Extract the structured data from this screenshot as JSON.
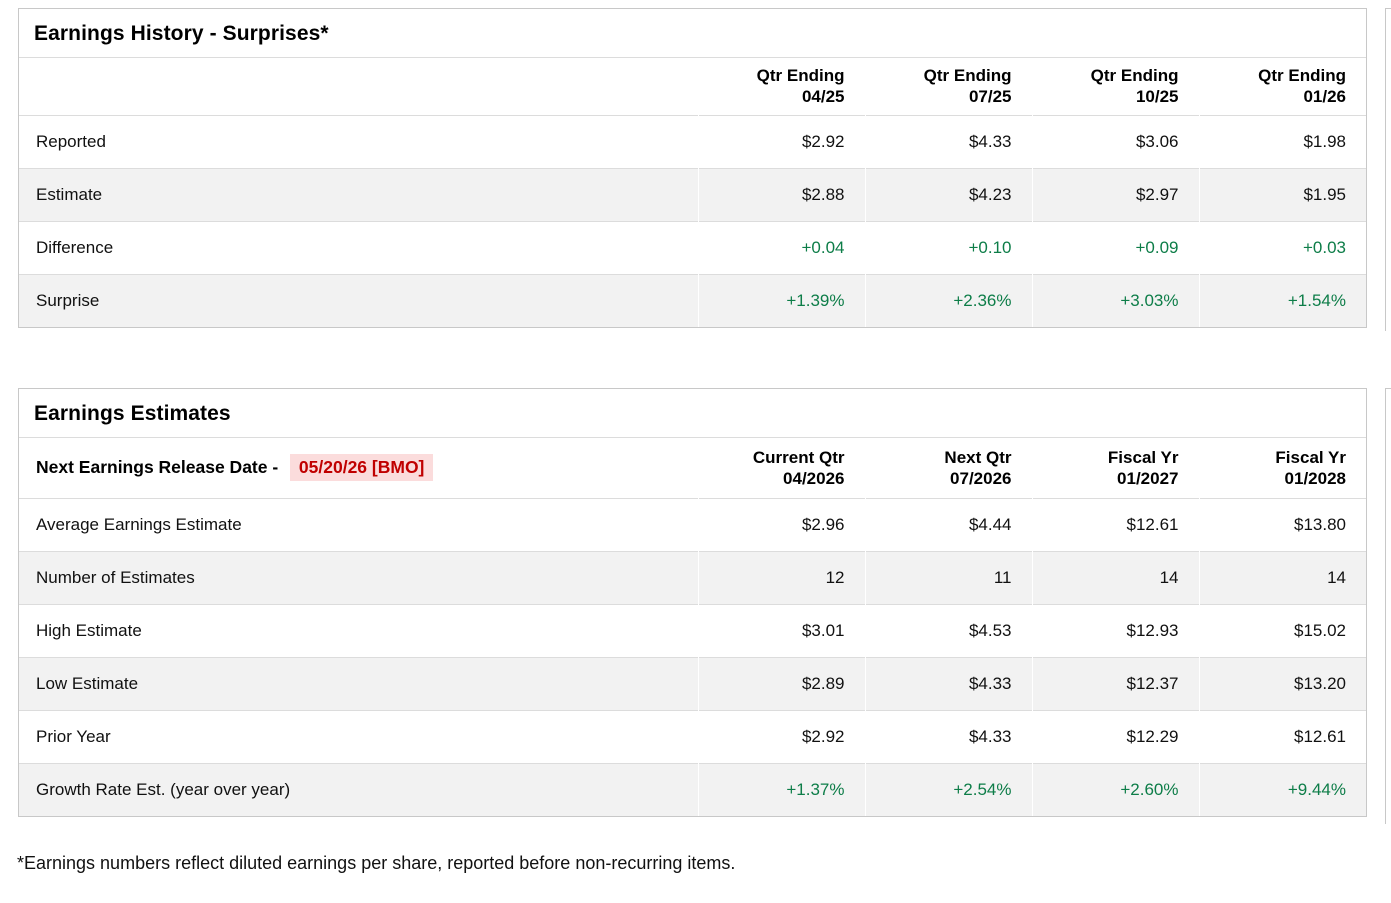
{
  "colors": {
    "positive_green": "#0d7d48",
    "alert_red": "#c00000",
    "alert_red_background": "#fbdcdc"
  },
  "earnings_history": {
    "title": "Earnings History - Surprises*",
    "columns": [
      {
        "line1": "Qtr Ending",
        "line2": "04/25"
      },
      {
        "line1": "Qtr Ending",
        "line2": "07/25"
      },
      {
        "line1": "Qtr Ending",
        "line2": "10/25"
      },
      {
        "line1": "Qtr Ending",
        "line2": "01/26"
      }
    ],
    "rows": [
      {
        "label": "Reported",
        "values": [
          "$2.92",
          "$4.33",
          "$3.06",
          "$1.98"
        ]
      },
      {
        "label": "Estimate",
        "values": [
          "$2.88",
          "$4.23",
          "$2.97",
          "$1.95"
        ]
      },
      {
        "label": "Difference",
        "values": [
          "+0.04",
          "+0.10",
          "+0.09",
          "+0.03"
        ]
      },
      {
        "label": "Surprise",
        "values": [
          "+1.39%",
          "+2.36%",
          "+3.03%",
          "+1.54%"
        ]
      }
    ]
  },
  "earnings_estimates": {
    "title": "Earnings Estimates",
    "release_date_label": "Next Earnings Release Date -",
    "release_date_value": "05/20/26 [BMO]",
    "columns": [
      {
        "line1": "Current Qtr",
        "line2": "04/2026"
      },
      {
        "line1": "Next Qtr",
        "line2": "07/2026"
      },
      {
        "line1": "Fiscal Yr",
        "line2": "01/2027"
      },
      {
        "line1": "Fiscal Yr",
        "line2": "01/2028"
      }
    ],
    "rows": [
      {
        "label": "Average Earnings Estimate",
        "values": [
          "$2.96",
          "$4.44",
          "$12.61",
          "$13.80"
        ]
      },
      {
        "label": "Number of Estimates",
        "values": [
          "12",
          "11",
          "14",
          "14"
        ]
      },
      {
        "label": "High Estimate",
        "values": [
          "$3.01",
          "$4.53",
          "$12.93",
          "$15.02"
        ]
      },
      {
        "label": "Low Estimate",
        "values": [
          "$2.89",
          "$4.33",
          "$12.37",
          "$13.20"
        ]
      },
      {
        "label": "Prior Year",
        "values": [
          "$2.92",
          "$4.33",
          "$12.29",
          "$12.61"
        ]
      },
      {
        "label": "Growth Rate Est. (year over year)",
        "values": [
          "+1.37%",
          "+2.54%",
          "+2.60%",
          "+9.44%"
        ]
      }
    ]
  },
  "footnote": "*Earnings numbers reflect diluted earnings per share, reported before non-recurring items."
}
